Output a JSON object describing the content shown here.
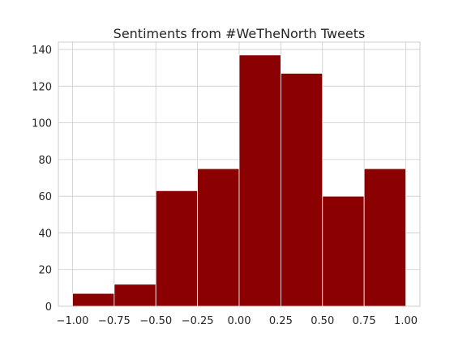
{
  "chart_data": {
    "type": "bar",
    "title": "Sentiments from #WeTheNorth Tweets",
    "xlabel": "",
    "ylabel": "",
    "bin_edges": [
      -1.0,
      -0.75,
      -0.5,
      -0.25,
      0.0,
      0.25,
      0.5,
      0.75,
      1.0
    ],
    "values": [
      7,
      12,
      63,
      75,
      137,
      127,
      60,
      75
    ],
    "xlim": [
      -1.085,
      1.085
    ],
    "ylim": [
      0,
      144
    ],
    "xticks": [
      -1.0,
      -0.75,
      -0.5,
      -0.25,
      0.0,
      0.25,
      0.5,
      0.75,
      1.0
    ],
    "xtick_labels": [
      "−1.00",
      "−0.75",
      "−0.50",
      "−0.25",
      "0.00",
      "0.25",
      "0.50",
      "0.75",
      "1.00"
    ],
    "yticks": [
      0,
      20,
      40,
      60,
      80,
      100,
      120,
      140
    ],
    "ytick_labels": [
      "0",
      "20",
      "40",
      "60",
      "80",
      "100",
      "120",
      "140"
    ],
    "grid": true,
    "bar_color": "#8b0000"
  }
}
